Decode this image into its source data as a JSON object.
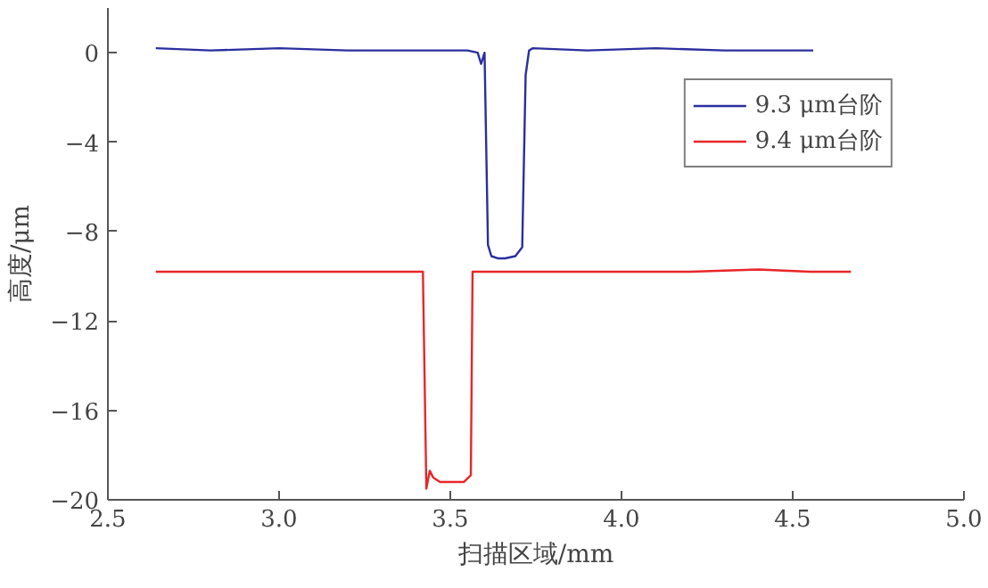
{
  "chart_data": {
    "type": "line",
    "xlabel": "扫描区域/mm",
    "ylabel": "高度/μm",
    "xlim": [
      2.5,
      5.0
    ],
    "ylim": [
      -20,
      2
    ],
    "xticks": [
      2.5,
      {
        "value": 3,
        "label": "3.0"
      },
      3.5,
      {
        "value": 4,
        "label": "4.0"
      },
      4.5,
      {
        "value": 5,
        "label": "5.0"
      }
    ],
    "yticks": [
      0,
      -4,
      -8,
      -12,
      -16,
      -20
    ],
    "grid": false,
    "legend": "top right",
    "line_style": "solid",
    "marker": "none",
    "series": [
      {
        "name": "9.3 μm台阶",
        "color": "#2b2e9e",
        "x": [
          2.64,
          2.8,
          3.0,
          3.2,
          3.4,
          3.55,
          3.58,
          3.59,
          3.6,
          3.61,
          3.62,
          3.64,
          3.66,
          3.69,
          3.71,
          3.72,
          3.73,
          3.74,
          3.9,
          4.1,
          4.3,
          4.45,
          4.56
        ],
        "values": [
          0.2,
          0.1,
          0.2,
          0.1,
          0.1,
          0.1,
          0.0,
          -0.5,
          0.0,
          -8.6,
          -9.1,
          -9.2,
          -9.2,
          -9.1,
          -8.7,
          -1.0,
          0.1,
          0.2,
          0.1,
          0.2,
          0.1,
          0.1,
          0.1
        ]
      },
      {
        "name": "9.4 μm台阶",
        "color": "#e8262a",
        "x": [
          2.64,
          2.8,
          3.0,
          3.2,
          3.42,
          3.43,
          3.44,
          3.45,
          3.47,
          3.5,
          3.54,
          3.56,
          3.565,
          3.58,
          3.8,
          4.0,
          4.2,
          4.4,
          4.55,
          4.67
        ],
        "values": [
          -9.8,
          -9.8,
          -9.8,
          -9.8,
          -9.8,
          -19.5,
          -18.7,
          -19.0,
          -19.2,
          -19.2,
          -19.2,
          -18.9,
          -9.8,
          -9.8,
          -9.8,
          -9.8,
          -9.8,
          -9.7,
          -9.8,
          -9.8
        ]
      }
    ]
  }
}
